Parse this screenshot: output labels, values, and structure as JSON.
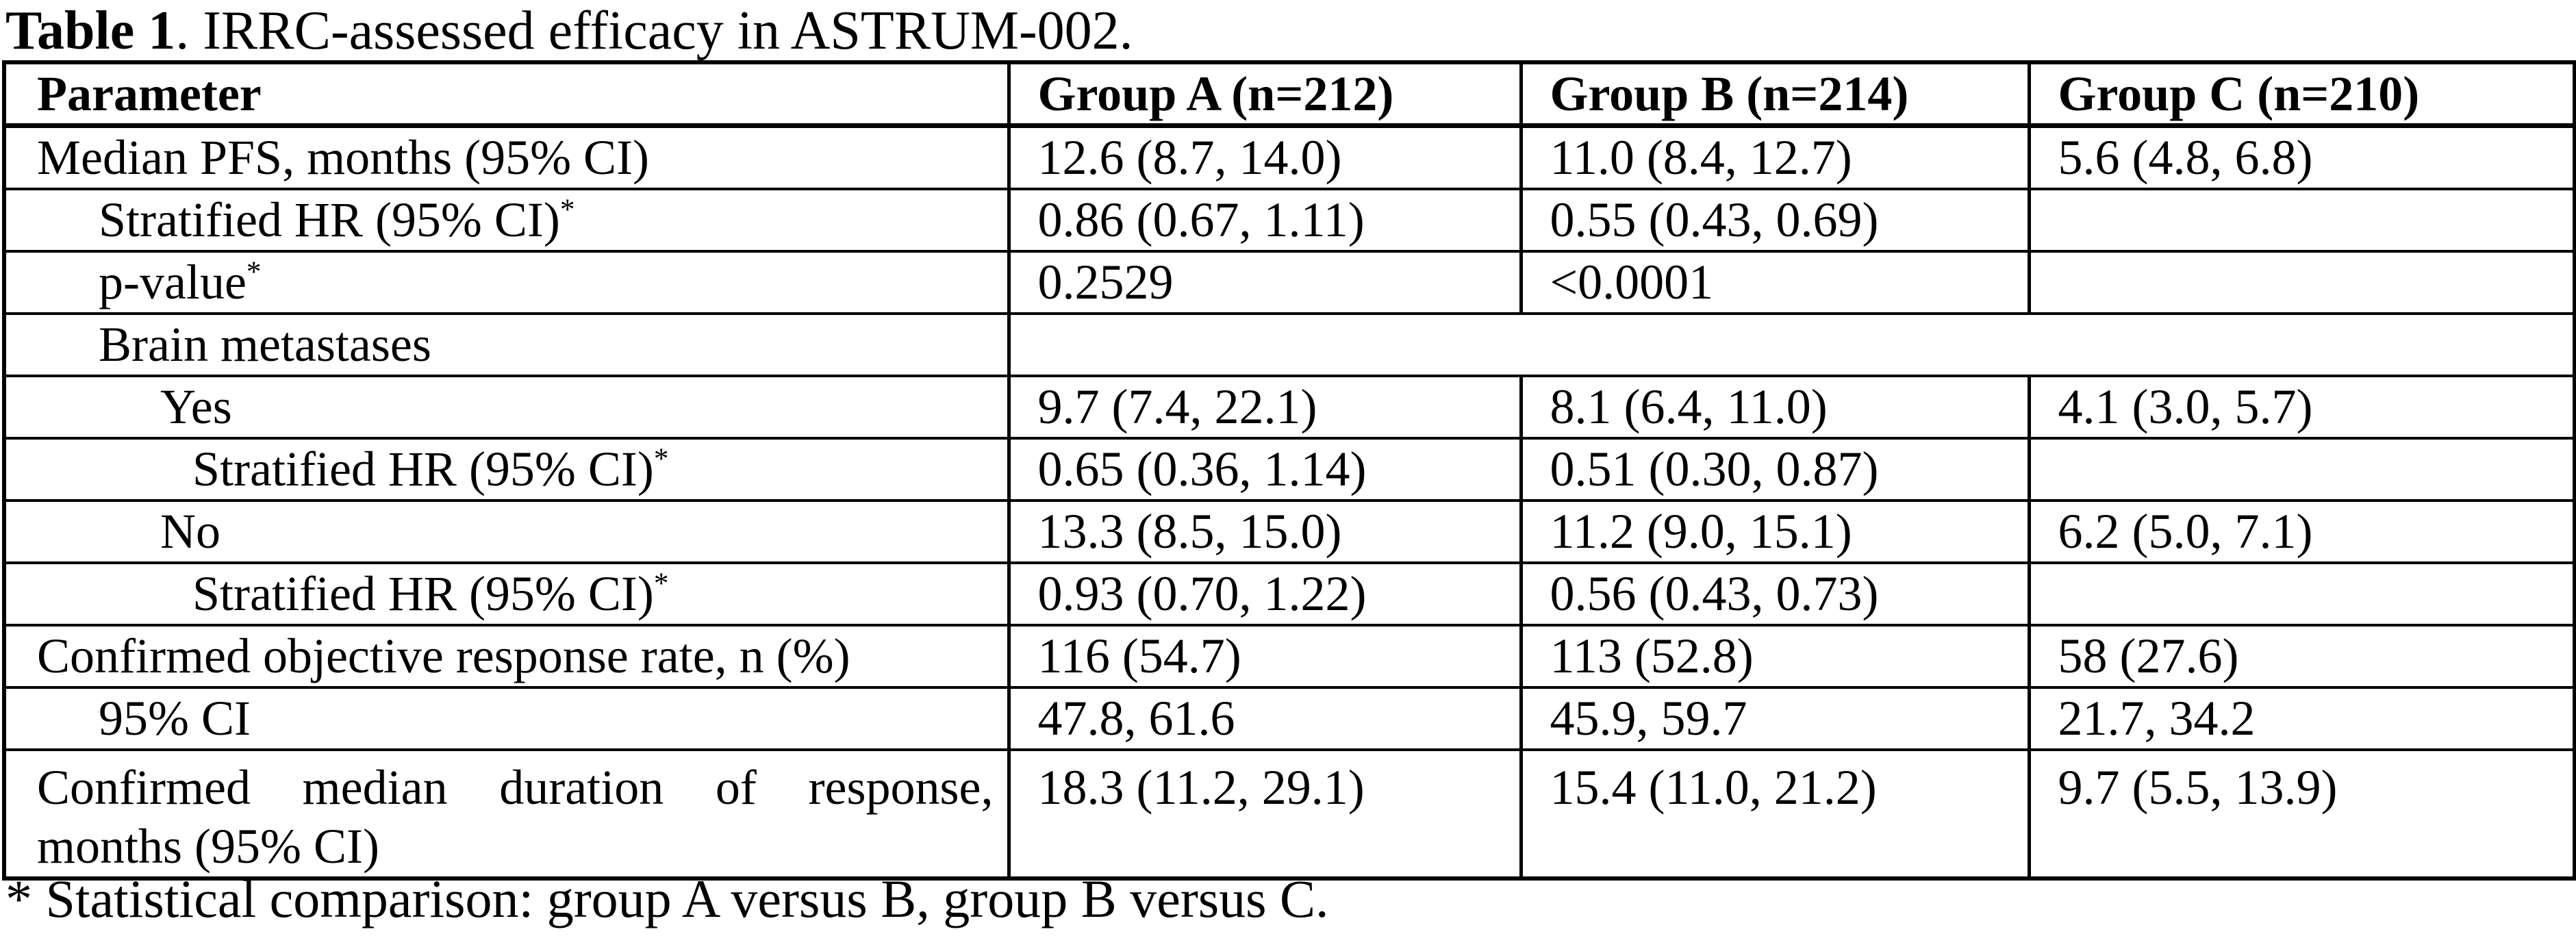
{
  "page": {
    "background": "#ffffff",
    "text_color": "#000000",
    "border_color": "#000000"
  },
  "title": {
    "prefix": "Table 1",
    "rest": ". IRRC-assessed efficacy in ASTRUM-002."
  },
  "table": {
    "columns": [
      "Parameter",
      "Group A (n=212)",
      "Group B (n=214)",
      "Group C (n=210)"
    ],
    "rows": [
      {
        "label": "Median PFS, months (95% CI)",
        "indent": 0,
        "cells": [
          "12.6 (8.7, 14.0)",
          "11.0 (8.4, 12.7)",
          "5.6 (4.8, 6.8)"
        ]
      },
      {
        "label": "Stratified HR (95% CI)",
        "sup": "*",
        "indent": 1,
        "cells": [
          "0.86 (0.67, 1.11)",
          "0.55 (0.43, 0.69)",
          ""
        ]
      },
      {
        "label": "p-value",
        "sup": "*",
        "indent": 1,
        "cells": [
          "0.2529",
          "<0.0001",
          ""
        ]
      },
      {
        "label": "Brain metastases",
        "indent": 1,
        "merged": true,
        "cells": [
          "",
          "",
          ""
        ]
      },
      {
        "label": "Yes",
        "indent": 2,
        "cells": [
          "9.7 (7.4, 22.1)",
          "8.1 (6.4, 11.0)",
          "4.1 (3.0, 5.7)"
        ]
      },
      {
        "label": "Stratified HR (95% CI)",
        "sup": "*",
        "indent": 3,
        "cells": [
          "0.65 (0.36, 1.14)",
          "0.51 (0.30, 0.87)",
          ""
        ]
      },
      {
        "label": "No",
        "indent": 2,
        "cells": [
          "13.3 (8.5, 15.0)",
          "11.2 (9.0, 15.1)",
          "6.2 (5.0, 7.1)"
        ]
      },
      {
        "label": "Stratified HR (95% CI)",
        "sup": "*",
        "indent": 3,
        "cells": [
          "0.93 (0.70, 1.22)",
          "0.56 (0.43, 0.73)",
          ""
        ]
      },
      {
        "label": "Confirmed objective response rate, n (%)",
        "indent": 0,
        "cells": [
          "116 (54.7)",
          "113 (52.8)",
          "58 (27.6)"
        ]
      },
      {
        "label": "95% CI",
        "indent": 1,
        "cells": [
          "47.8, 61.6",
          "45.9, 59.7",
          "21.7, 34.2"
        ]
      },
      {
        "label": "Confirmed median duration of response, months (95% CI)",
        "label_lines": [
          "Confirmed median duration of response,",
          "months (95% CI)"
        ],
        "indent": 0,
        "cells": [
          "18.3 (11.2, 29.1)",
          "15.4 (11.0, 21.2)",
          "9.7 (5.5, 13.9)"
        ]
      }
    ]
  },
  "footnote": "* Statistical comparison: group A versus B, group B versus C."
}
